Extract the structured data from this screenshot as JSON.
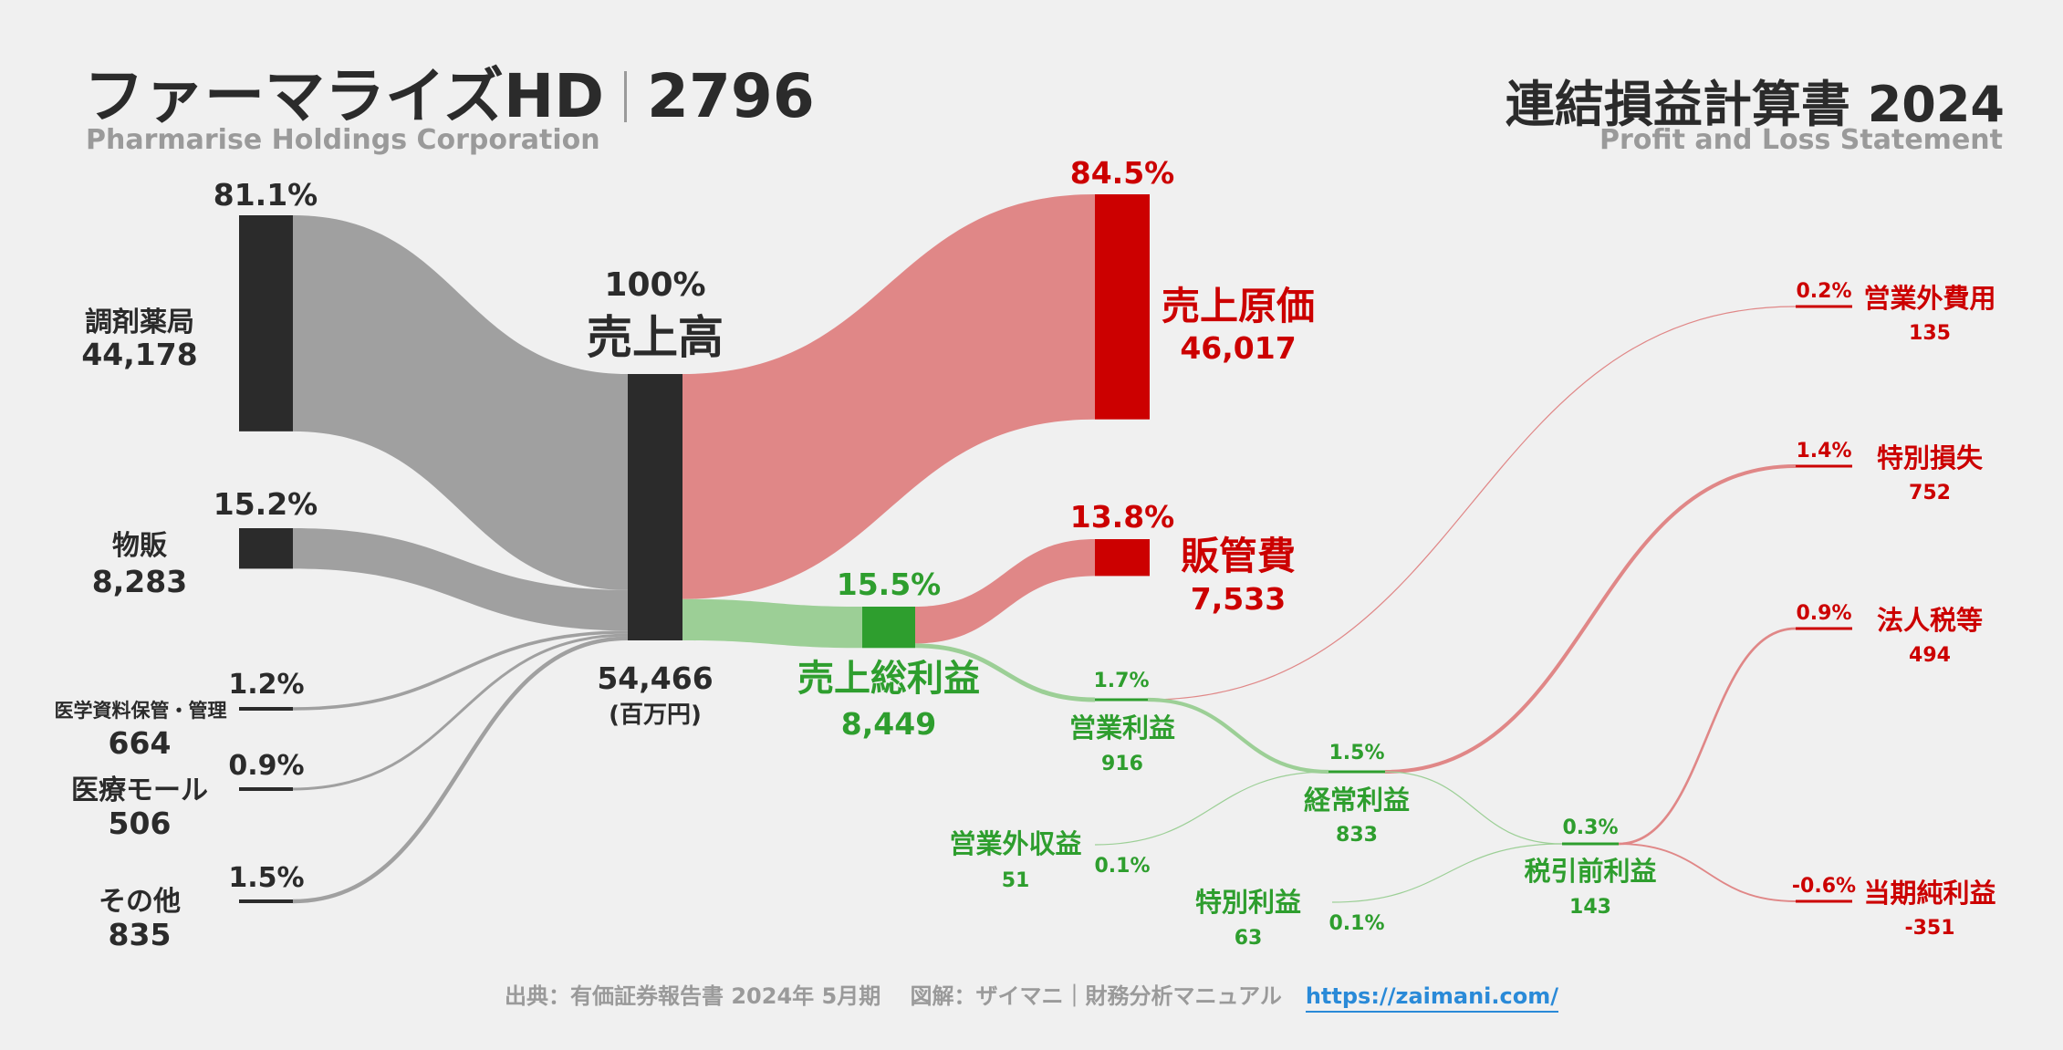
{
  "header": {
    "company": "ファーマライズHD",
    "code": "2796",
    "company_en": "Pharmarise Holdings Corporation",
    "statement": "連結損益計算書 2024",
    "statement_en": "Profit and Loss Statement"
  },
  "footer": {
    "source": "出典：有価証券報告書 2024年 5月期　 図解：ザイマニ｜財務分析マニュアル",
    "url": "https://zaimani.com/"
  },
  "colors": {
    "node": "#2b2b2b",
    "revenue_flow": "#a0a0a0",
    "cost": "#cc0000",
    "cost_flow": "#e08787",
    "profit": "#2e9e2e",
    "profit_flow": "#9ccf96"
  },
  "chart_data": {
    "type": "sankey",
    "unit": "(百万円)",
    "nodes": [
      {
        "id": "chozai",
        "label": "調剤薬局",
        "value": "44,178",
        "pct": "81.1%"
      },
      {
        "id": "buppan",
        "label": "物販",
        "value": "8,283",
        "pct": "15.2%"
      },
      {
        "id": "iryo_shiryo",
        "label": "医学資料保管・管理",
        "value": "664",
        "pct": "1.2%"
      },
      {
        "id": "iryo_mall",
        "label": "医療モール",
        "value": "506",
        "pct": "0.9%"
      },
      {
        "id": "sonota",
        "label": "その他",
        "value": "835",
        "pct": "1.5%"
      },
      {
        "id": "revenue",
        "label": "売上高",
        "value": "54,466",
        "pct": "100%"
      },
      {
        "id": "cogs",
        "label": "売上原価",
        "value": "46,017",
        "pct": "84.5%"
      },
      {
        "id": "gross",
        "label": "売上総利益",
        "value": "8,449",
        "pct": "15.5%"
      },
      {
        "id": "sga",
        "label": "販管費",
        "value": "7,533",
        "pct": "13.8%"
      },
      {
        "id": "op",
        "label": "営業利益",
        "value": "916",
        "pct": "1.7%"
      },
      {
        "id": "nonop_inc",
        "label": "営業外収益",
        "value": "51",
        "pct": "0.1%"
      },
      {
        "id": "nonop_exp",
        "label": "営業外費用",
        "value": "135",
        "pct": "0.2%"
      },
      {
        "id": "ordinary",
        "label": "経常利益",
        "value": "833",
        "pct": "1.5%"
      },
      {
        "id": "ext_gain",
        "label": "特別利益",
        "value": "63",
        "pct": "0.1%"
      },
      {
        "id": "ext_loss",
        "label": "特別損失",
        "value": "752",
        "pct": "1.4%"
      },
      {
        "id": "pretax",
        "label": "税引前利益",
        "value": "143",
        "pct": "0.3%"
      },
      {
        "id": "tax",
        "label": "法人税等",
        "value": "494",
        "pct": "0.9%"
      },
      {
        "id": "net",
        "label": "当期純利益",
        "value": "-351",
        "pct": "-0.6%"
      }
    ],
    "links": [
      {
        "source": "chozai",
        "target": "revenue",
        "value": 44178
      },
      {
        "source": "buppan",
        "target": "revenue",
        "value": 8283
      },
      {
        "source": "iryo_shiryo",
        "target": "revenue",
        "value": 664
      },
      {
        "source": "iryo_mall",
        "target": "revenue",
        "value": 506
      },
      {
        "source": "sonota",
        "target": "revenue",
        "value": 835
      },
      {
        "source": "revenue",
        "target": "cogs",
        "value": 46017
      },
      {
        "source": "revenue",
        "target": "gross",
        "value": 8449
      },
      {
        "source": "gross",
        "target": "sga",
        "value": 7533
      },
      {
        "source": "gross",
        "target": "op",
        "value": 916
      },
      {
        "source": "op",
        "target": "nonop_exp",
        "value": 135
      },
      {
        "source": "op",
        "target": "ordinary",
        "value": 781
      },
      {
        "source": "nonop_inc",
        "target": "ordinary",
        "value": 51
      },
      {
        "source": "ordinary",
        "target": "ext_loss",
        "value": 752
      },
      {
        "source": "ordinary",
        "target": "pretax",
        "value": 81
      },
      {
        "source": "ext_gain",
        "target": "pretax",
        "value": 63
      },
      {
        "source": "pretax",
        "target": "tax",
        "value": 494
      },
      {
        "source": "pretax",
        "target": "net",
        "value": -351
      }
    ]
  }
}
